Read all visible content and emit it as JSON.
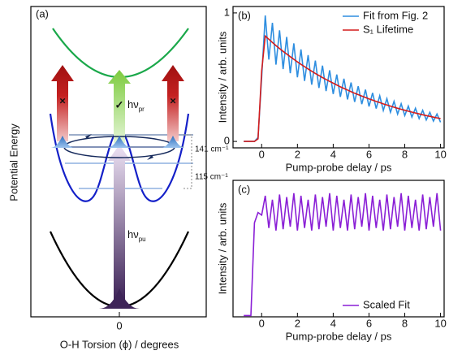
{
  "diagram": {
    "panel_label": "(a)",
    "y_label": "Potential Energy",
    "x_label": "O-H Torsion (ϕ) / degrees",
    "x_tick": "0",
    "probe_label": {
      "main": "hν",
      "sub": "pr"
    },
    "pump_label": {
      "main": "hν",
      "sub": "pu"
    },
    "gap_labels": [
      "141 cm⁻¹",
      "115 cm⁻¹"
    ],
    "allowed_mark": "✓",
    "blocked_marks": [
      "×",
      "×"
    ]
  },
  "chart_data": [
    {
      "type": "line",
      "panel_label": "(b)",
      "x_label": "Pump-probe delay / ps",
      "y_label": "Intensity / arb. units",
      "xlim": [
        -1.6,
        10.2
      ],
      "xticks": [
        0,
        2,
        4,
        6,
        8,
        10
      ],
      "ylim": [
        -0.05,
        1.05
      ],
      "yticks": [
        0,
        1
      ],
      "legend": "upper right",
      "x": [
        -1,
        -0.8,
        -0.6,
        -0.4,
        -0.2,
        0,
        0.2,
        0.4,
        0.6,
        0.8,
        1,
        1.2,
        1.4,
        1.6,
        1.8,
        2,
        2.2,
        2.4,
        2.6,
        2.8,
        3,
        3.2,
        3.4,
        3.6,
        3.8,
        4,
        4.2,
        4.4,
        4.6,
        4.8,
        5,
        5.2,
        5.4,
        5.6,
        5.8,
        6,
        6.2,
        6.4,
        6.6,
        6.8,
        7,
        7.2,
        7.4,
        7.6,
        7.8,
        8,
        8.2,
        8.4,
        8.6,
        8.8,
        9,
        9.2,
        9.4,
        9.6,
        9.8,
        10
      ],
      "series": [
        {
          "name": "Fit from Fig. 2",
          "color": "#2e8ee0",
          "values": [
            0,
            0,
            0,
            0,
            0.03,
            0.5,
            0.98,
            0.637,
            0.923,
            0.598,
            0.865,
            0.563,
            0.813,
            0.531,
            0.763,
            0.499,
            0.716,
            0.47,
            0.672,
            0.442,
            0.629,
            0.416,
            0.59,
            0.392,
            0.554,
            0.369,
            0.52,
            0.347,
            0.488,
            0.327,
            0.458,
            0.307,
            0.43,
            0.29,
            0.403,
            0.272,
            0.378,
            0.256,
            0.355,
            0.241,
            0.333,
            0.227,
            0.312,
            0.213,
            0.293,
            0.201,
            0.275,
            0.189,
            0.258,
            0.178,
            0.242,
            0.167,
            0.227,
            0.158,
            0.213,
            0.149
          ]
        },
        {
          "name": "S₁ Lifetime",
          "color": "#d41c1c",
          "values": [
            0,
            0,
            0,
            0,
            0.02,
            0.55,
            0.82,
            0.795,
            0.77,
            0.746,
            0.723,
            0.701,
            0.68,
            0.659,
            0.639,
            0.619,
            0.6,
            0.582,
            0.564,
            0.546,
            0.529,
            0.513,
            0.497,
            0.482,
            0.467,
            0.453,
            0.439,
            0.425,
            0.412,
            0.4,
            0.387,
            0.375,
            0.364,
            0.353,
            0.342,
            0.331,
            0.321,
            0.311,
            0.302,
            0.292,
            0.283,
            0.275,
            0.266,
            0.258,
            0.25,
            0.243,
            0.235,
            0.228,
            0.221,
            0.214,
            0.207,
            0.201,
            0.195,
            0.189,
            0.183,
            0.178
          ]
        }
      ]
    },
    {
      "type": "line",
      "panel_label": "(c)",
      "x_label": "Pump-probe delay / ps",
      "y_label": "Intensity / arb. units",
      "xlim": [
        -1.6,
        10.2
      ],
      "xticks": [
        0,
        2,
        4,
        6,
        8,
        10
      ],
      "ylim": [
        -0.01,
        1.05
      ],
      "legend": "lower right",
      "x": [
        -1,
        -0.8,
        -0.6,
        -0.4,
        -0.2,
        0,
        0.2,
        0.4,
        0.6,
        0.8,
        1,
        1.2,
        1.4,
        1.6,
        1.8,
        2,
        2.2,
        2.4,
        2.6,
        2.8,
        3,
        3.2,
        3.4,
        3.6,
        3.8,
        4,
        4.2,
        4.4,
        4.6,
        4.8,
        5,
        5.2,
        5.4,
        5.6,
        5.8,
        6,
        6.2,
        6.4,
        6.6,
        6.8,
        7,
        7.2,
        7.4,
        7.6,
        7.8,
        8,
        8.2,
        8.4,
        8.6,
        8.8,
        9,
        9.2,
        9.4,
        9.6,
        9.8,
        10
      ],
      "series": [
        {
          "name": "Scaled Fit",
          "color": "#8a1fd6",
          "values": [
            0,
            0,
            0,
            0.72,
            0.8,
            0.78,
            0.93,
            0.68,
            0.9,
            0.66,
            0.94,
            0.67,
            0.92,
            0.69,
            0.95,
            0.66,
            0.93,
            0.68,
            0.9,
            0.66,
            0.94,
            0.67,
            0.92,
            0.69,
            0.95,
            0.66,
            0.93,
            0.68,
            0.9,
            0.66,
            0.94,
            0.67,
            0.92,
            0.69,
            0.95,
            0.66,
            0.93,
            0.68,
            0.9,
            0.66,
            0.94,
            0.67,
            0.92,
            0.69,
            0.95,
            0.66,
            0.93,
            0.68,
            0.9,
            0.66,
            0.94,
            0.67,
            0.92,
            0.69,
            0.95,
            0.66
          ]
        }
      ]
    }
  ]
}
